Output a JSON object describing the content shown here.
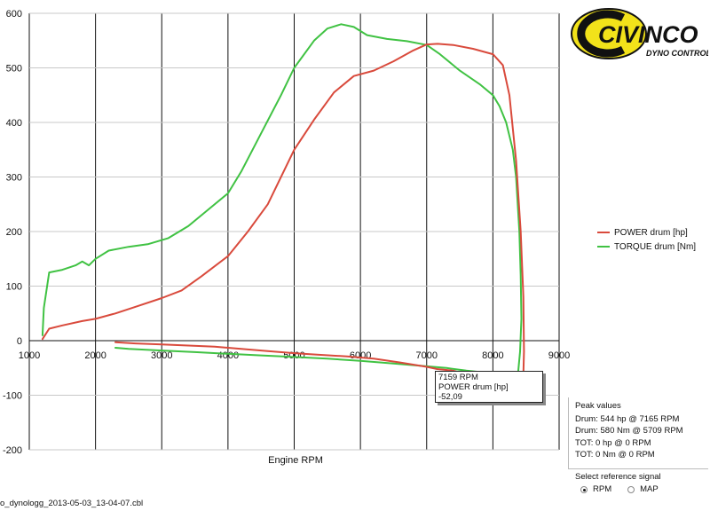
{
  "logo": {
    "brand": "CIVINCO",
    "tagline": "DYNO CONTROL"
  },
  "legend": [
    {
      "label": "POWER drum [hp]",
      "color": "#d94a3c"
    },
    {
      "label": "TORQUE drum [Nm]",
      "color": "#40c243"
    }
  ],
  "tooltip": {
    "line1": "7159 RPM",
    "line2": "POWER drum [hp]",
    "line3": "-52,09"
  },
  "peak": {
    "title": "Peak values",
    "lines": [
      "Drum: 544 hp @ 7165 RPM",
      "Drum: 580 Nm @ 5709 RPM",
      "TOT: 0 hp @ 0 RPM",
      "TOT: 0 Nm @ 0 RPM"
    ]
  },
  "reference": {
    "title": "Select reference signal",
    "options": [
      "RPM",
      "MAP"
    ],
    "selected": "RPM"
  },
  "footer": "o_dynologg_2013-05-03_13-04-07.cbl",
  "chart_data": {
    "type": "line",
    "xlabel": "Engine RPM",
    "ylabel": "",
    "xlim": [
      1000,
      9000
    ],
    "ylim": [
      -200,
      600
    ],
    "xticks": [
      1000,
      2000,
      3000,
      4000,
      5000,
      6000,
      7000,
      8000,
      9000
    ],
    "yticks": [
      -200,
      -100,
      0,
      100,
      200,
      300,
      400,
      500,
      600
    ],
    "grid": true,
    "legend_position": "right",
    "series": [
      {
        "name": "POWER drum [hp]",
        "color": "#d94a3c",
        "x": [
          1200,
          1300,
          1500,
          1800,
          2000,
          2300,
          2600,
          3000,
          3300,
          3600,
          4000,
          4300,
          4600,
          5000,
          5300,
          5600,
          5900,
          6200,
          6500,
          6800,
          7000,
          7165,
          7400,
          7700,
          8000,
          8150,
          8250,
          8350,
          8420,
          8460,
          8470,
          8450,
          8400,
          8350,
          8300,
          8200,
          8000,
          7700,
          7400,
          7159,
          7000,
          6600,
          6200,
          5800,
          5400,
          5000,
          4600,
          4200,
          3800,
          3400,
          3000,
          2600,
          2300
        ],
        "y": [
          3,
          22,
          28,
          36,
          40,
          50,
          62,
          78,
          92,
          118,
          155,
          200,
          250,
          350,
          405,
          455,
          485,
          495,
          512,
          532,
          543,
          544,
          542,
          535,
          525,
          505,
          450,
          330,
          200,
          80,
          -20,
          -105,
          -115,
          -110,
          -100,
          -85,
          -75,
          -65,
          -55,
          -52,
          -48,
          -40,
          -33,
          -29,
          -26,
          -23,
          -19,
          -15,
          -11,
          -9,
          -7,
          -5,
          -3
        ]
      },
      {
        "name": "TORQUE drum [Nm]",
        "color": "#40c243",
        "x": [
          1200,
          1220,
          1300,
          1500,
          1700,
          1800,
          1900,
          2000,
          2200,
          2500,
          2800,
          3100,
          3400,
          3700,
          4000,
          4200,
          4500,
          4800,
          5000,
          5300,
          5500,
          5709,
          5900,
          6100,
          6400,
          6700,
          7000,
          7200,
          7500,
          7800,
          8000,
          8100,
          8200,
          8300,
          8350,
          8400,
          8420,
          8430,
          8410,
          8380,
          8300,
          8000,
          7600,
          7300,
          7000,
          6500,
          6000,
          5500,
          5000,
          4500,
          4000,
          3500,
          3000,
          2500,
          2300
        ],
        "y": [
          10,
          60,
          125,
          130,
          138,
          145,
          138,
          150,
          165,
          172,
          177,
          188,
          210,
          240,
          270,
          310,
          380,
          450,
          500,
          550,
          572,
          580,
          575,
          560,
          553,
          549,
          542,
          525,
          495,
          470,
          450,
          430,
          400,
          350,
          300,
          200,
          120,
          40,
          -20,
          -60,
          -62,
          -60,
          -55,
          -50,
          -47,
          -42,
          -37,
          -33,
          -30,
          -27,
          -24,
          -21,
          -18,
          -15,
          -13
        ]
      }
    ]
  }
}
